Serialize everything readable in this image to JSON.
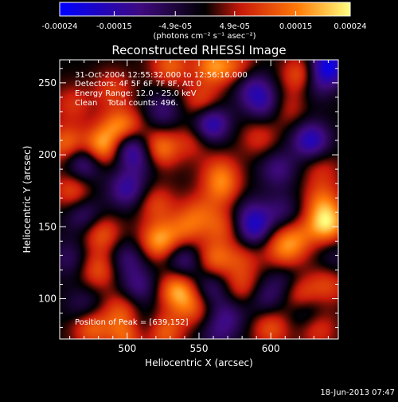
{
  "colorbar": {
    "tick_labels": [
      "-0.00024",
      "-0.00015",
      "-4.9e-05",
      "4.9e-05",
      "0.00015",
      "0.00024"
    ],
    "tick_values": [
      -0.00024,
      -0.00015,
      -4.9e-05,
      4.9e-05,
      0.00015,
      0.00024
    ],
    "range": [
      -0.00024,
      0.00024
    ],
    "unit_label": "(photons cm⁻² s⁻¹ asec⁻²)",
    "colors": [
      "#0000ff",
      "#3f0a7f",
      "#000000",
      "#c8180a",
      "#ff7b08",
      "#ffff80"
    ]
  },
  "chart_data": {
    "type": "heatmap",
    "title": "Reconstructed RHESSI Image",
    "xlabel": "Heliocentric X (arcsec)",
    "ylabel": "Heliocentric Y (arcsec)",
    "xlim": [
      453,
      647
    ],
    "ylim": [
      72,
      266
    ],
    "x_ticks": [
      500,
      550,
      600
    ],
    "y_ticks": [
      100,
      150,
      200,
      250
    ],
    "annotations": [
      "31-Oct-2004 12:55:32.000 to 12:56:16.000",
      "Detectors: 4F 5F 6F 7F 8F, Att 0",
      "Energy Range: 12.0 - 25.0 keV",
      "Clean    Total counts: 496."
    ],
    "peak_label": "Position of Peak = [639,152]",
    "peak": [
      639,
      152
    ],
    "blobs": [
      {
        "x": 458,
        "y": 207,
        "v": 0.00016
      },
      {
        "x": 462,
        "y": 175,
        "v": 0.00013
      },
      {
        "x": 462,
        "y": 235,
        "v": 9e-05
      },
      {
        "x": 470,
        "y": 195,
        "v": -0.00018
      },
      {
        "x": 482,
        "y": 205,
        "v": 0.00022
      },
      {
        "x": 490,
        "y": 245,
        "v": 0.0001
      },
      {
        "x": 492,
        "y": 218,
        "v": 0.00011
      },
      {
        "x": 500,
        "y": 218,
        "v": 0.00015
      },
      {
        "x": 500,
        "y": 208,
        "v": -0.00019
      },
      {
        "x": 510,
        "y": 198,
        "v": -0.00012
      },
      {
        "x": 522,
        "y": 204,
        "v": 0.00019
      },
      {
        "x": 530,
        "y": 262,
        "v": 0.00014
      },
      {
        "x": 560,
        "y": 262,
        "v": 0.00018
      },
      {
        "x": 552,
        "y": 236,
        "v": 0.00013
      },
      {
        "x": 545,
        "y": 210,
        "v": 9e-05
      },
      {
        "x": 558,
        "y": 222,
        "v": -0.00022
      },
      {
        "x": 525,
        "y": 230,
        "v": -0.00011
      },
      {
        "x": 566,
        "y": 176,
        "v": 0.00012
      },
      {
        "x": 565,
        "y": 188,
        "v": 0.00011
      },
      {
        "x": 578,
        "y": 260,
        "v": 0.00011
      },
      {
        "x": 595,
        "y": 236,
        "v": -0.00014
      },
      {
        "x": 586,
        "y": 248,
        "v": -0.00013
      },
      {
        "x": 622,
        "y": 255,
        "v": 0.00018
      },
      {
        "x": 630,
        "y": 250,
        "v": -0.00012
      },
      {
        "x": 640,
        "y": 262,
        "v": -0.00024
      },
      {
        "x": 628,
        "y": 210,
        "v": -0.0002
      },
      {
        "x": 592,
        "y": 212,
        "v": 9e-05
      },
      {
        "x": 612,
        "y": 232,
        "v": 8e-05
      },
      {
        "x": 605,
        "y": 190,
        "v": -0.00012
      },
      {
        "x": 635,
        "y": 190,
        "v": 8e-05
      },
      {
        "x": 500,
        "y": 176,
        "v": -0.00016
      },
      {
        "x": 470,
        "y": 158,
        "v": -0.00012
      },
      {
        "x": 482,
        "y": 145,
        "v": 0.00014
      },
      {
        "x": 520,
        "y": 166,
        "v": 0.00011
      },
      {
        "x": 522,
        "y": 140,
        "v": 0.0002
      },
      {
        "x": 540,
        "y": 148,
        "v": 0.00012
      },
      {
        "x": 550,
        "y": 160,
        "v": 0.0001
      },
      {
        "x": 540,
        "y": 127,
        "v": -0.00014
      },
      {
        "x": 560,
        "y": 127,
        "v": 0.00015
      },
      {
        "x": 566,
        "y": 150,
        "v": 0.00011
      },
      {
        "x": 585,
        "y": 160,
        "v": -8e-05
      },
      {
        "x": 590,
        "y": 148,
        "v": -0.0002
      },
      {
        "x": 580,
        "y": 128,
        "v": 9e-05
      },
      {
        "x": 600,
        "y": 143,
        "v": 8e-05
      },
      {
        "x": 608,
        "y": 160,
        "v": -0.0001
      },
      {
        "x": 618,
        "y": 143,
        "v": 0.00012
      },
      {
        "x": 610,
        "y": 132,
        "v": 0.00012
      },
      {
        "x": 639,
        "y": 152,
        "v": 0.00024
      },
      {
        "x": 636,
        "y": 168,
        "v": 0.00013
      },
      {
        "x": 460,
        "y": 128,
        "v": -9e-05
      },
      {
        "x": 480,
        "y": 120,
        "v": 0.00013
      },
      {
        "x": 500,
        "y": 128,
        "v": -0.00011
      },
      {
        "x": 508,
        "y": 108,
        "v": -0.00012
      },
      {
        "x": 470,
        "y": 95,
        "v": -9e-05
      },
      {
        "x": 496,
        "y": 92,
        "v": 0.00012
      },
      {
        "x": 512,
        "y": 80,
        "v": -9e-05
      },
      {
        "x": 475,
        "y": 80,
        "v": 0.00015
      },
      {
        "x": 525,
        "y": 77,
        "v": 0.00016
      },
      {
        "x": 500,
        "y": 74,
        "v": 0.00015
      },
      {
        "x": 535,
        "y": 106,
        "v": 0.0002
      },
      {
        "x": 546,
        "y": 94,
        "v": 0.00012
      },
      {
        "x": 558,
        "y": 108,
        "v": -0.00012
      },
      {
        "x": 570,
        "y": 88,
        "v": -0.00011
      },
      {
        "x": 580,
        "y": 108,
        "v": 0.00011
      },
      {
        "x": 596,
        "y": 100,
        "v": -0.0001
      },
      {
        "x": 610,
        "y": 112,
        "v": -9e-05
      },
      {
        "x": 620,
        "y": 103,
        "v": 0.00014
      },
      {
        "x": 640,
        "y": 110,
        "v": 0.00011
      },
      {
        "x": 625,
        "y": 90,
        "v": -0.00011
      },
      {
        "x": 600,
        "y": 80,
        "v": 0.00013
      },
      {
        "x": 632,
        "y": 80,
        "v": 0.00012
      },
      {
        "x": 562,
        "y": 74,
        "v": -8e-05
      },
      {
        "x": 645,
        "y": 128,
        "v": -7e-05
      }
    ],
    "grid": false
  },
  "footer": {
    "timestamp": "18-Jun-2013 07:47"
  }
}
